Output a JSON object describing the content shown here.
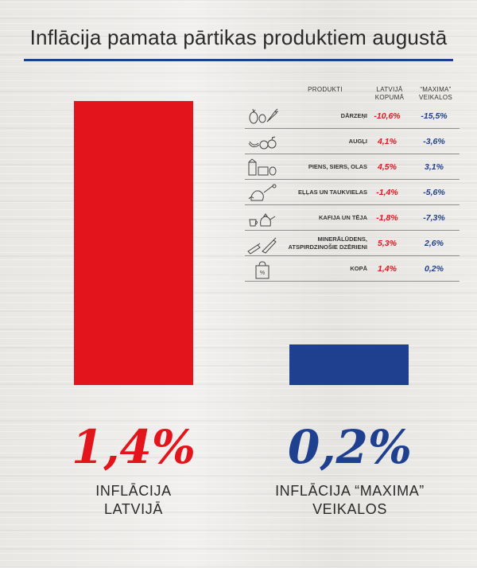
{
  "title": "Inflācija pamata pārtikas produktiem augustā",
  "colors": {
    "latvia": "#e3141c",
    "maxima": "#1f3f8f",
    "rule": "#1f3f8f"
  },
  "chart_data": {
    "type": "bar",
    "categories": [
      "INFLĀCIJA LATVIJĀ",
      "INFLĀCIJA “MAXIMA” VEIKALOS"
    ],
    "values": [
      1.4,
      0.2
    ],
    "value_labels": [
      "1,4%",
      "0,2%"
    ],
    "captions": [
      [
        "INFLĀCIJA",
        "LATVIJĀ"
      ],
      [
        "INFLĀCIJA “MAXIMA”",
        "VEIKALOS"
      ]
    ],
    "colors": [
      "#e3141c",
      "#1f3f8f"
    ]
  },
  "table": {
    "headers": {
      "products": "PRODUKTI",
      "latvia": [
        "LATVIJĀ",
        "KOPUMĀ"
      ],
      "maxima": [
        "“MAXIMA”",
        "VEIKALOS"
      ]
    },
    "rows": [
      {
        "icon": "vegetables-icon",
        "label": [
          "DĀRZEŅI"
        ],
        "latvia": "-10,6%",
        "maxima": "-15,5%"
      },
      {
        "icon": "fruits-icon",
        "label": [
          "AUGĻI"
        ],
        "latvia": "4,1%",
        "maxima": "-3,6%"
      },
      {
        "icon": "dairy-icon",
        "label": [
          "PIENS, SIERS, OLAS"
        ],
        "latvia": "4,5%",
        "maxima": "3,1%"
      },
      {
        "icon": "oil-icon",
        "label": [
          "EĻĻAS UN TAUKVIELAS"
        ],
        "latvia": "-1,4%",
        "maxima": "-5,6%"
      },
      {
        "icon": "coffee-tea-icon",
        "label": [
          "KAFIJA UN TĒJA"
        ],
        "latvia": "-1,8%",
        "maxima": "-7,3%"
      },
      {
        "icon": "drinks-icon",
        "label": [
          "MINERĀLŪDENS,",
          "ATSPIRDZINOŠIE DZĒRIENI"
        ],
        "latvia": "5,3%",
        "maxima": "2,6%"
      },
      {
        "icon": "shopping-bag-icon",
        "label": [
          "KOPĀ"
        ],
        "latvia": "1,4%",
        "maxima": "0,2%"
      }
    ]
  }
}
